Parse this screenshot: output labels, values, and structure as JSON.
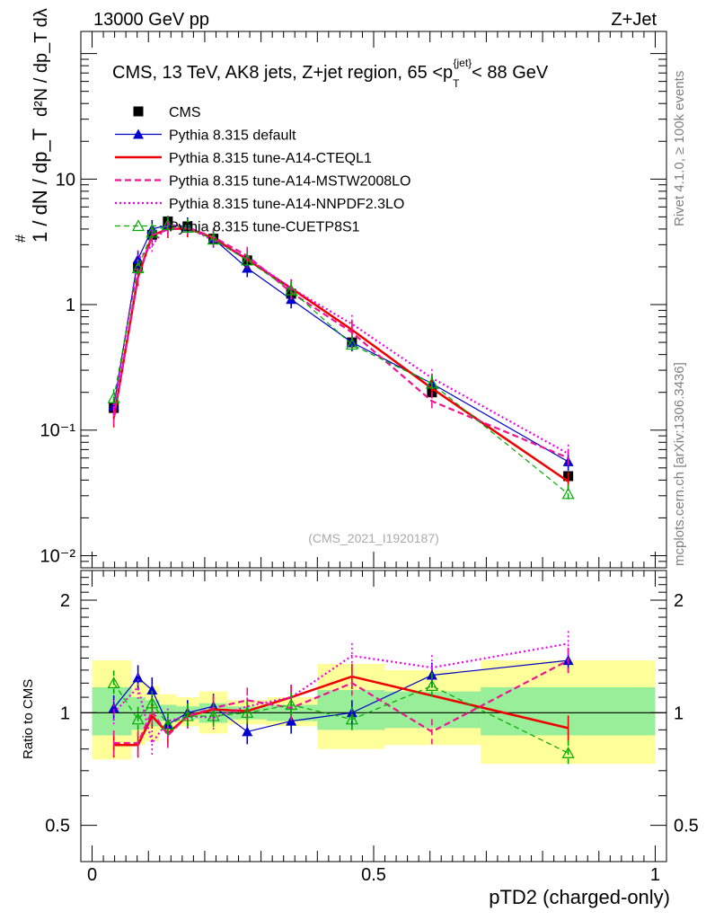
{
  "header": {
    "left": "13000 GeV pp",
    "right": "Z+Jet"
  },
  "side": {
    "rivet": "Rivet 4.1.0, ≥ 100k events",
    "mcplots": "mcplots.cern.ch [arXiv:1306.3436]"
  },
  "colors": {
    "cms": "#000000",
    "default": "#0000cc",
    "cteql1": "#ee0000",
    "mstw": "#ee1493",
    "nnpdf": "#ee00ee",
    "cuetp8s1": "#00aa00",
    "band_yellow": "#ffff99",
    "band_green": "#99ee99"
  },
  "chart_data": [
    {
      "type": "line",
      "panel": "main",
      "title": "CMS, 13 TeV, AK8 jets, Z+jet region, 65 <p_T^{jet}< 88 GeV",
      "title_main": "CMS, 13 TeV, AK8 jets, Z+jet region, 65 <p",
      "title_sub": "T",
      "title_sup": "{jet",
      "title_sup2": "}",
      "title_end": "< 88 GeV",
      "ylabel_outer": "1 / dN / dp_T",
      "ylabel_inner": "d²N / dp_T dλ",
      "yscale": "log",
      "ylim": [
        0.008,
        150
      ],
      "ytick_labels": [
        "10⁻²",
        "10⁻¹",
        "1",
        "10"
      ],
      "ytick_values": [
        0.01,
        0.1,
        1,
        10
      ],
      "watermark": "(CMS_2021_I1920187)",
      "legend_position": "top-left",
      "x": [
        0.0385,
        0.0815,
        0.1065,
        0.1345,
        0.1695,
        0.2155,
        0.2755,
        0.3535,
        0.4615,
        0.6035,
        0.8455
      ],
      "series": [
        {
          "name": "CMS",
          "key": "cms",
          "style": "marker",
          "values": [
            0.15,
            2.0,
            3.6,
            4.6,
            4.2,
            3.35,
            2.25,
            1.22,
            0.5,
            0.2,
            0.043
          ]
        },
        {
          "name": "Pythia 8.315 default",
          "key": "default",
          "style": "solid-thin",
          "values": [
            0.155,
            2.3,
            4.0,
            4.3,
            4.2,
            3.35,
            1.95,
            1.1,
            0.5,
            0.235,
            0.056
          ]
        },
        {
          "name": "Pythia 8.315 tune-A14-CTEQL1",
          "key": "cteql1",
          "style": "solid-thick",
          "values": [
            0.124,
            1.65,
            3.55,
            4.0,
            4.05,
            3.4,
            2.28,
            1.35,
            0.63,
            0.215,
            0.039
          ]
        },
        {
          "name": "Pythia 8.315 tune-A14-MSTW2008LO",
          "key": "mstw",
          "style": "dashed",
          "values": [
            0.125,
            1.65,
            3.6,
            3.95,
            4.1,
            3.45,
            2.45,
            1.25,
            0.6,
            0.17,
            0.06
          ]
        },
        {
          "name": "Pythia 8.315 tune-A14-NNPDF2.3LO",
          "key": "nnpdf",
          "style": "dotted",
          "values": [
            0.15,
            2.3,
            2.95,
            4.35,
            4.1,
            3.25,
            2.35,
            1.35,
            0.7,
            0.26,
            0.065
          ]
        },
        {
          "name": "Pythia 8.315 tune-CUETP8S1",
          "key": "cuetp8s1",
          "style": "dashed-thin",
          "values": [
            0.18,
            1.95,
            3.75,
            4.3,
            4.1,
            3.3,
            2.25,
            1.3,
            0.48,
            0.235,
            0.031
          ]
        }
      ]
    },
    {
      "type": "line",
      "panel": "ratio",
      "ylabel": "Ratio to CMS",
      "xlabel": "pTD2 (charged-only)",
      "ylim": [
        0.4,
        2.4
      ],
      "ytick_labels": [
        "0.5",
        "1",
        "2"
      ],
      "ytick_values": [
        0.5,
        1,
        2
      ],
      "xlim": [
        -0.02,
        1.02
      ],
      "xtick_labels": [
        "0",
        "0.5",
        "1"
      ],
      "xtick_values": [
        0,
        0.5,
        1
      ],
      "x": [
        0.0385,
        0.0815,
        0.1065,
        0.1345,
        0.1695,
        0.2155,
        0.2755,
        0.3535,
        0.4615,
        0.6035,
        0.8455
      ],
      "bin_edges": [
        0,
        0.07,
        0.095,
        0.12,
        0.15,
        0.19,
        0.24,
        0.31,
        0.4,
        0.52,
        0.69,
        1.0
      ],
      "band_yellow": [
        [
          0.75,
          1.38
        ],
        [
          0.82,
          1.22
        ],
        [
          0.84,
          1.18
        ],
        [
          0.9,
          1.12
        ],
        [
          0.92,
          1.1
        ],
        [
          0.88,
          1.14
        ],
        [
          0.93,
          1.08
        ],
        [
          0.92,
          1.1
        ],
        [
          0.8,
          1.35
        ],
        [
          0.82,
          1.3
        ],
        [
          0.73,
          1.38
        ]
      ],
      "band_green": [
        [
          0.87,
          1.17
        ],
        [
          0.9,
          1.1
        ],
        [
          0.92,
          1.08
        ],
        [
          0.95,
          1.05
        ],
        [
          0.96,
          1.04
        ],
        [
          0.94,
          1.06
        ],
        [
          0.96,
          1.04
        ],
        [
          0.95,
          1.05
        ],
        [
          0.9,
          1.15
        ],
        [
          0.91,
          1.14
        ],
        [
          0.87,
          1.17
        ]
      ],
      "series": [
        {
          "name": "Pythia 8.315 default",
          "key": "default",
          "style": "solid-thin",
          "values": [
            1.03,
            1.24,
            1.15,
            0.93,
            1.0,
            1.04,
            0.89,
            0.95,
            1.0,
            1.26,
            1.38
          ]
        },
        {
          "name": "Pythia 8.315 tune-A14-CTEQL1",
          "key": "cteql1",
          "style": "solid-thick",
          "values": [
            0.82,
            0.82,
            0.98,
            0.88,
            0.98,
            1.02,
            1.01,
            1.1,
            1.25,
            null,
            0.91
          ]
        },
        {
          "name": "Pythia 8.315 tune-A14-MSTW2008LO",
          "key": "mstw",
          "style": "dashed",
          "values": [
            0.83,
            0.83,
            1.01,
            0.87,
            0.98,
            1.03,
            1.08,
            1.03,
            1.2,
            0.89,
            1.38
          ]
        },
        {
          "name": "Pythia 8.315 tune-A14-NNPDF2.3LO",
          "key": "nnpdf",
          "style": "dotted",
          "values": [
            1.0,
            1.17,
            0.83,
            0.95,
            0.98,
            0.97,
            1.04,
            1.1,
            1.42,
            1.32,
            1.53
          ]
        },
        {
          "name": "Pythia 8.315 tune-CUETP8S1",
          "key": "cuetp8s1",
          "style": "dashed-thin",
          "values": [
            1.2,
            0.96,
            1.06,
            0.93,
            0.98,
            0.98,
            1.0,
            1.05,
            0.96,
            1.18,
            0.78
          ]
        }
      ]
    }
  ]
}
